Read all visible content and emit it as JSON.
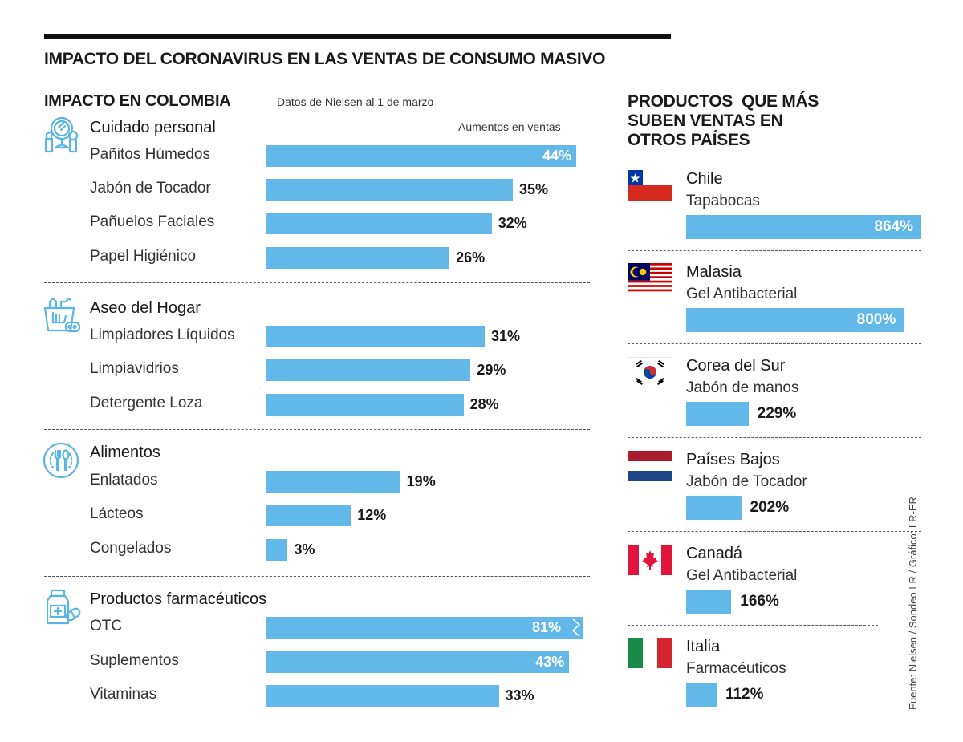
{
  "header": {
    "title": "IMPACTO DEL CORONAVIRUS EN LAS VENTAS DE CONSUMO MASIVO"
  },
  "left": {
    "title": "IMPACTO EN COLOMBIA",
    "subtitle": "Datos de Nielsen al 1 de marzo",
    "axis_note": "Aumentos en ventas"
  },
  "right": {
    "title_lines": [
      "PRODUCTOS  QUE MÁS",
      "SUBEN VENTAS EN",
      "OTROS PAÍSES"
    ]
  },
  "source": "Fuente: Nielsen / Sondeo LR / Gráfico: LR-ER",
  "colors": {
    "bar": "#62b8e8",
    "icon": "#5cb4e4",
    "text": "#1a1a1a"
  },
  "chart_data": [
    {
      "type": "bar",
      "orientation": "horizontal",
      "title": "IMPACTO EN COLOMBIA",
      "subtitle": "Datos de Nielsen al 1 de marzo",
      "xlabel": "Aumentos en ventas",
      "unit": "%",
      "groups": [
        {
          "name": "Cuidado personal",
          "icon": "personal-care-icon",
          "items": [
            {
              "label": "Pañitos Húmedos",
              "value": 44,
              "display": "44%"
            },
            {
              "label": "Jabón de Tocador",
              "value": 35,
              "display": "35%"
            },
            {
              "label": "Pañuelos Faciales",
              "value": 32,
              "display": "32%"
            },
            {
              "label": "Papel Higiénico",
              "value": 26,
              "display": "26%"
            }
          ]
        },
        {
          "name": "Aseo del Hogar",
          "icon": "cleaning-bucket-icon",
          "items": [
            {
              "label": "Limpiadores Líquidos",
              "value": 31,
              "display": "31%"
            },
            {
              "label": "Limpiavidrios",
              "value": 29,
              "display": "29%"
            },
            {
              "label": "Detergente Loza",
              "value": 28,
              "display": "28%"
            }
          ]
        },
        {
          "name": "Alimentos",
          "icon": "food-plate-icon",
          "items": [
            {
              "label": "Enlatados",
              "value": 19,
              "display": "19%"
            },
            {
              "label": "Lácteos",
              "value": 12,
              "display": "12%"
            },
            {
              "label": "Congelados",
              "value": 3,
              "display": "3%"
            }
          ]
        },
        {
          "name": "Productos farmacéuticos",
          "icon": "medicine-bottle-icon",
          "items": [
            {
              "label": "OTC",
              "value": 81,
              "display": "81%",
              "truncated": true
            },
            {
              "label": "Suplementos",
              "value": 43,
              "display": "43%"
            },
            {
              "label": "Vitaminas",
              "value": 33,
              "display": "33%"
            }
          ]
        }
      ]
    },
    {
      "type": "bar",
      "orientation": "horizontal",
      "title": "PRODUCTOS QUE MÁS SUBEN VENTAS EN OTROS PAÍSES",
      "unit": "%",
      "items": [
        {
          "country": "Chile",
          "product": "Tapabocas",
          "value": 864,
          "display": "864%",
          "flag": "chile"
        },
        {
          "country": "Malasia",
          "product": "Gel Antibacterial",
          "value": 800,
          "display": "800%",
          "flag": "malaysia"
        },
        {
          "country": "Corea del Sur",
          "product": "Jabón de manos",
          "value": 229,
          "display": "229%",
          "flag": "south-korea"
        },
        {
          "country": "Países Bajos",
          "product": "Jabón de Tocador",
          "value": 202,
          "display": "202%",
          "flag": "netherlands"
        },
        {
          "country": "Canadá",
          "product": "Gel Antibacterial",
          "value": 166,
          "display": "166%",
          "flag": "canada"
        },
        {
          "country": "Italia",
          "product": "Farmacéuticos",
          "value": 112,
          "display": "112%",
          "flag": "italy"
        }
      ]
    }
  ]
}
